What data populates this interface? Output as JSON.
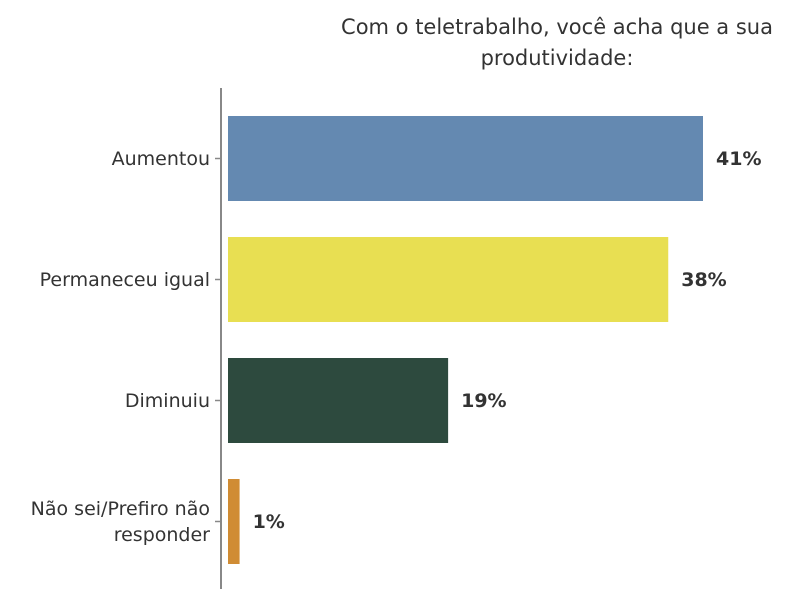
{
  "chart_data": {
    "type": "bar",
    "orientation": "horizontal",
    "title": "Com o teletrabalho, você acha que a sua produtividade:",
    "categories": [
      "Aumentou",
      "Permaneceu igual",
      "Diminuiu",
      "Não sei/Prefiro não responder"
    ],
    "values": [
      41,
      38,
      19,
      1
    ],
    "value_labels": [
      "41%",
      "38%",
      "19%",
      "1%"
    ],
    "colors": [
      "#6489b1",
      "#e8df52",
      "#2d4a3e",
      "#d08c34"
    ]
  }
}
